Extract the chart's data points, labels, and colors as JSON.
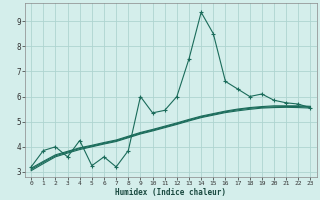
{
  "xlabel": "Humidex (Indice chaleur)",
  "xlim": [
    -0.5,
    23.5
  ],
  "ylim": [
    2.8,
    9.7
  ],
  "yticks": [
    3,
    4,
    5,
    6,
    7,
    8,
    9
  ],
  "xticks": [
    0,
    1,
    2,
    3,
    4,
    5,
    6,
    7,
    8,
    9,
    10,
    11,
    12,
    13,
    14,
    15,
    16,
    17,
    18,
    19,
    20,
    21,
    22,
    23
  ],
  "bg_color": "#d4eeeb",
  "grid_color": "#aed4d0",
  "line_color": "#1a6b5a",
  "main_series_y": [
    3.2,
    3.85,
    4.0,
    3.6,
    4.25,
    3.25,
    3.6,
    3.2,
    3.85,
    6.0,
    5.35,
    5.45,
    6.0,
    7.5,
    9.35,
    8.5,
    6.6,
    6.3,
    6.0,
    6.1,
    5.85,
    5.75,
    5.7,
    5.55
  ],
  "smooth1_y": [
    3.15,
    3.42,
    3.68,
    3.82,
    3.96,
    4.06,
    4.17,
    4.27,
    4.42,
    4.57,
    4.69,
    4.82,
    4.95,
    5.09,
    5.22,
    5.32,
    5.42,
    5.5,
    5.56,
    5.6,
    5.63,
    5.63,
    5.63,
    5.61
  ],
  "smooth2_y": [
    3.05,
    3.33,
    3.6,
    3.75,
    3.89,
    4.0,
    4.11,
    4.21,
    4.36,
    4.51,
    4.63,
    4.76,
    4.89,
    5.03,
    5.16,
    5.26,
    5.36,
    5.43,
    5.49,
    5.54,
    5.56,
    5.57,
    5.56,
    5.54
  ],
  "smooth3_y": [
    3.1,
    3.38,
    3.64,
    3.79,
    3.93,
    4.03,
    4.14,
    4.24,
    4.39,
    4.54,
    4.66,
    4.79,
    4.92,
    5.06,
    5.19,
    5.29,
    5.39,
    5.47,
    5.53,
    5.57,
    5.59,
    5.6,
    5.6,
    5.58
  ]
}
